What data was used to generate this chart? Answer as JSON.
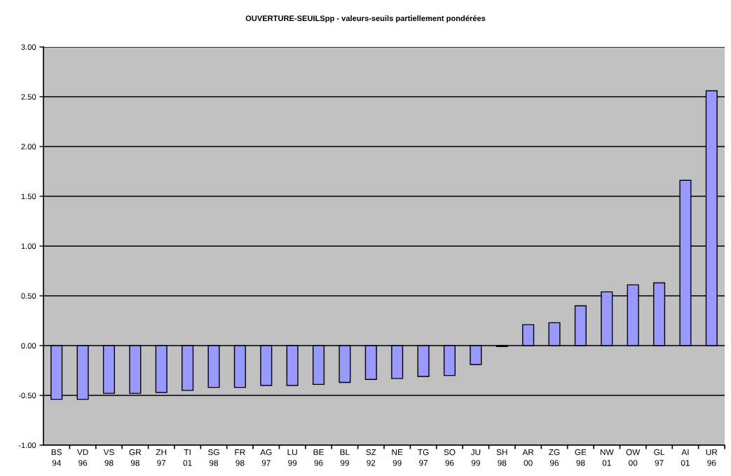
{
  "chart_data": {
    "type": "bar",
    "title": "OUVERTURE-SEUILSpp - valeurs-seuils partiellement pondérées",
    "categories": [
      "BS\n94",
      "VD\n96",
      "VS\n98",
      "GR\n98",
      "ZH\n97",
      "TI\n01",
      "SG\n98",
      "FR\n98",
      "AG\n97",
      "LU\n99",
      "BE\n96",
      "BL\n99",
      "SZ\n92",
      "NE\n99",
      "TG\n97",
      "SO\n96",
      "JU\n99",
      "SH\n98",
      "AR\n00",
      "ZG\n96",
      "GE\n98",
      "NW\n01",
      "OW\n00",
      "GL\n97",
      "AI\n01",
      "UR\n96"
    ],
    "values": [
      -0.54,
      -0.54,
      -0.48,
      -0.48,
      -0.47,
      -0.45,
      -0.42,
      -0.42,
      -0.4,
      -0.4,
      -0.39,
      -0.37,
      -0.34,
      -0.33,
      -0.31,
      -0.3,
      -0.19,
      -0.01,
      0.21,
      0.23,
      0.4,
      0.54,
      0.61,
      0.63,
      1.66,
      2.56
    ],
    "color": "#9999ff",
    "ylim": [
      -1.0,
      3.0
    ],
    "yticks": [
      {
        "value": -1.0,
        "label": "-1.00"
      },
      {
        "value": -0.5,
        "label": "-0.50"
      },
      {
        "value": 0.0,
        "label": "0.00"
      },
      {
        "value": 0.5,
        "label": "0.50"
      },
      {
        "value": 1.0,
        "label": "1.00"
      },
      {
        "value": 1.5,
        "label": "1.50"
      },
      {
        "value": 2.0,
        "label": "2.00"
      },
      {
        "value": 2.5,
        "label": "2.50"
      },
      {
        "value": 3.0,
        "label": "3.00"
      }
    ],
    "grid": "y",
    "legend": false
  }
}
